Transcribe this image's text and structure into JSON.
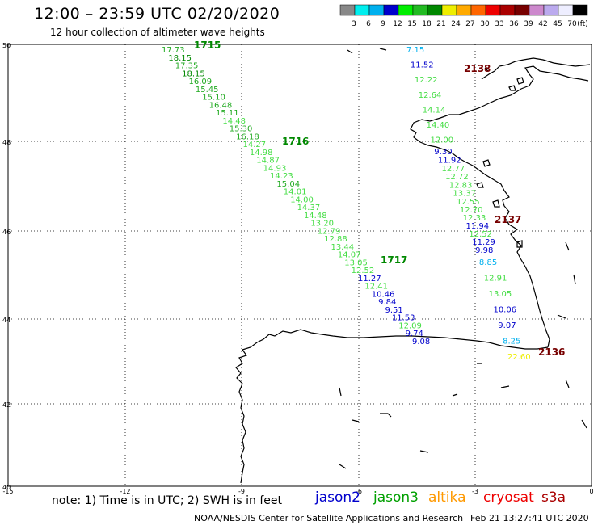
{
  "title": "12:00 – 23:59 UTC 02/20/2020",
  "subtitle": "12 hour collection of altimeter wave heights",
  "scale": {
    "labels": [
      "3",
      "6",
      "9",
      "12",
      "15",
      "18",
      "21",
      "24",
      "27",
      "30",
      "33",
      "36",
      "39",
      "42",
      "45",
      "70",
      "(ft)"
    ],
    "colors": [
      "#888888",
      "#00eeee",
      "#00b0ee",
      "#0000cc",
      "#00ee00",
      "#22bb22",
      "#008800",
      "#eeee00",
      "#ffaa00",
      "#ff6600",
      "#ee0000",
      "#aa0000",
      "#770000",
      "#cc88cc",
      "#bbaaee",
      "#eeeeff",
      "#000000"
    ]
  },
  "axes": {
    "lat": [
      "50",
      "48",
      "46",
      "44",
      "42",
      "40"
    ],
    "lon": [
      "-15",
      "-12",
      "-9",
      "-6",
      "-3",
      "0"
    ]
  },
  "tracks": [
    {
      "id": "west",
      "color_class": "green",
      "values": [
        "17.73",
        "18.15",
        "17.35",
        "18.15",
        "16.09",
        "15.45",
        "15.10",
        "16.48",
        "15.11",
        "14.48",
        "15.30",
        "16.18",
        "14.27",
        "14.98",
        "14.87",
        "14.93",
        "14.23",
        "15.04",
        "14.01",
        "14.00",
        "14.37",
        "14.48",
        "13.20",
        "12.79",
        "12.88",
        "13.44",
        "14.07",
        "13.05",
        "12.52",
        "11.27",
        "12.41",
        "10.46",
        "9.84",
        "9.51",
        "11.53",
        "12.09",
        "9.74",
        "9.08"
      ]
    },
    {
      "id": "east",
      "values": [
        "7.15",
        "11.52",
        "12.22",
        "12.64",
        "14.14",
        "14.40",
        "12.00",
        "9.30",
        "11.92",
        "12.77",
        "12.72",
        "12.83",
        "13.37",
        "12.55",
        "12.70",
        "12.33",
        "11.94",
        "12.52",
        "11.29",
        "9.98",
        "8.85",
        "12.91",
        "13.05",
        "10.06",
        "9.07",
        "8.25",
        "22.60"
      ]
    }
  ],
  "time_labels": [
    "1715",
    "1716",
    "1717",
    "2138",
    "2137",
    "2136"
  ],
  "note": "note: 1) Time is in UTC; 2) SWH is in feet",
  "satellites": [
    {
      "name": "jason2",
      "color": "#0000cc"
    },
    {
      "name": "jason3",
      "color": "#00a000"
    },
    {
      "name": "altika",
      "color": "#ff9900"
    },
    {
      "name": "cryosat",
      "color": "#ee0000"
    },
    {
      "name": "s3a",
      "color": "#aa0000"
    }
  ],
  "credit": "NOAA/NESDIS Center for Satellite Applications and Research",
  "timestamp": "Feb 21 13:27:41 UTC 2020"
}
